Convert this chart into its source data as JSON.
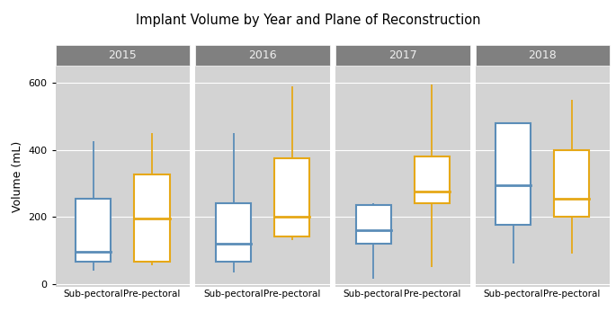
{
  "title": "Implant Volume by Year and Plane of Reconstruction",
  "ylabel": "Volume (mL)",
  "years": [
    "2015",
    "2016",
    "2017",
    "2018"
  ],
  "categories": [
    "Sub-pectoral",
    "Pre-pectoral"
  ],
  "background_color": "#d3d3d3",
  "panel_label_bg": "#808080",
  "panel_label_color": "#f0f0f0",
  "colors": {
    "Sub-pectoral": "#5b8db8",
    "Pre-pectoral": "#e6a817"
  },
  "ylim": [
    -10,
    650
  ],
  "yticks": [
    0,
    200,
    400,
    600
  ],
  "box_data": {
    "2015": {
      "Sub-pectoral": {
        "whislo": 40,
        "q1": 65,
        "med": 95,
        "q3": 255,
        "whishi": 425
      },
      "Pre-pectoral": {
        "whislo": 55,
        "q1": 65,
        "med": 195,
        "q3": 325,
        "whishi": 450
      }
    },
    "2016": {
      "Sub-pectoral": {
        "whislo": 35,
        "q1": 65,
        "med": 120,
        "q3": 240,
        "whishi": 450
      },
      "Pre-pectoral": {
        "whislo": 130,
        "q1": 140,
        "med": 200,
        "q3": 375,
        "whishi": 590
      }
    },
    "2017": {
      "Sub-pectoral": {
        "whislo": 15,
        "q1": 120,
        "med": 160,
        "q3": 235,
        "whishi": 240
      },
      "Pre-pectoral": {
        "whislo": 50,
        "q1": 240,
        "med": 275,
        "q3": 380,
        "whishi": 595
      }
    },
    "2018": {
      "Sub-pectoral": {
        "whislo": 60,
        "q1": 175,
        "med": 295,
        "q3": 480,
        "whishi": 480
      },
      "Pre-pectoral": {
        "whislo": 90,
        "q1": 200,
        "med": 255,
        "q3": 400,
        "whishi": 550
      }
    }
  }
}
